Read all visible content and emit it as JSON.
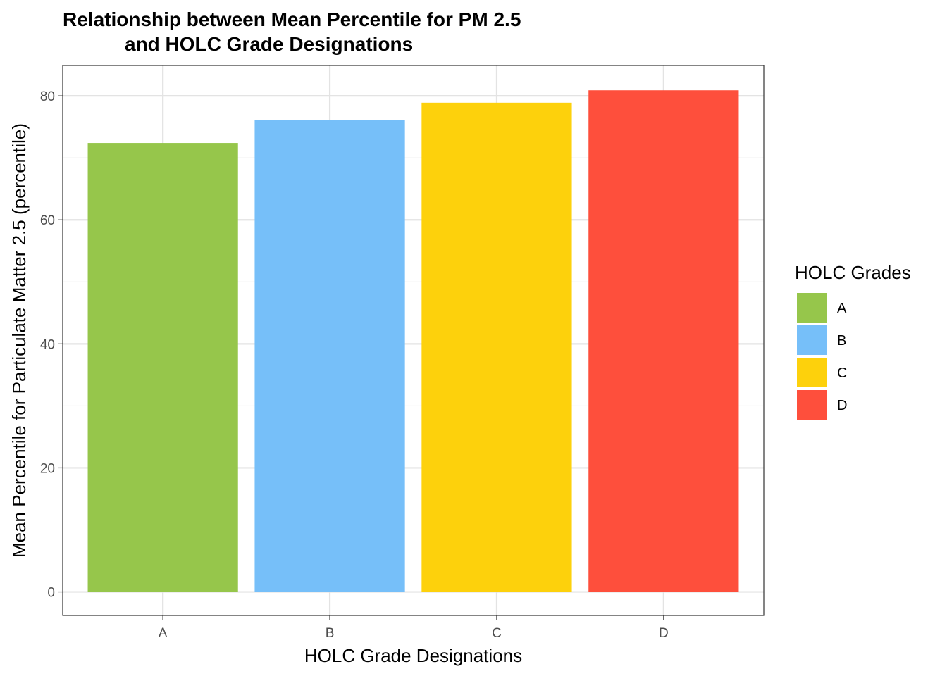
{
  "chart_data": {
    "type": "bar",
    "title": [
      "Relationship between Mean Percentile for PM 2.5",
      "and HOLC Grade Designations"
    ],
    "xlabel": "HOLC Grade Designations",
    "ylabel": "Mean Percentile for Particulate Matter 2.5 (percentile)",
    "categories": [
      "A",
      "B",
      "C",
      "D"
    ],
    "values": [
      72.4,
      76.1,
      78.9,
      80.9
    ],
    "colors": [
      "#96C64B",
      "#76BFF9",
      "#FDD10C",
      "#FE4F3C"
    ],
    "ylim": [
      -3.8,
      84.9
    ],
    "yticks": [
      0,
      20,
      40,
      60,
      80
    ],
    "grid": true,
    "legend": {
      "title": "HOLC Grades",
      "position": "right",
      "entries": [
        "A",
        "B",
        "C",
        "D"
      ]
    }
  }
}
